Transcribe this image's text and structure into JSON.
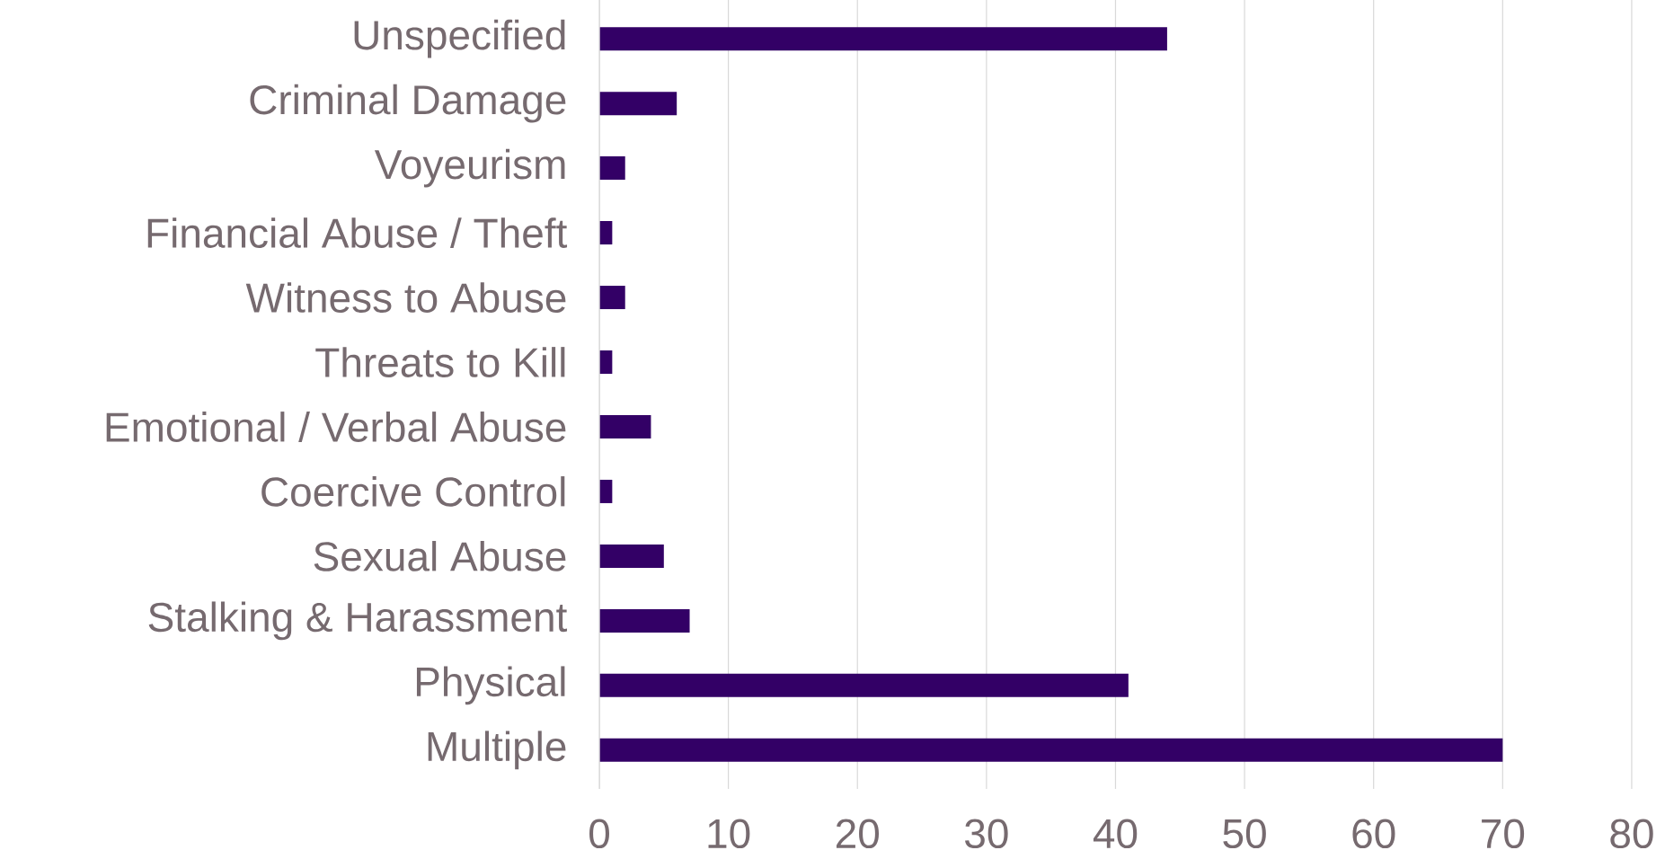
{
  "chart_data": {
    "type": "bar",
    "orientation": "horizontal",
    "categories": [
      "Unspecified",
      "Criminal Damage",
      "Voyeurism",
      "Financial Abuse / Theft",
      "Witness to Abuse",
      "Threats to Kill",
      "Emotional / Verbal Abuse",
      "Coercive Control",
      "Sexual Abuse",
      "Stalking & Harassment",
      "Physical",
      "Multiple"
    ],
    "values": [
      44,
      6,
      2,
      1,
      2,
      1,
      4,
      1,
      5,
      7,
      41,
      70
    ],
    "color": "#330066",
    "xlim": [
      0,
      80
    ],
    "xticks": [
      0,
      10,
      20,
      30,
      40,
      50,
      60,
      70,
      80
    ],
    "grid": "x"
  }
}
